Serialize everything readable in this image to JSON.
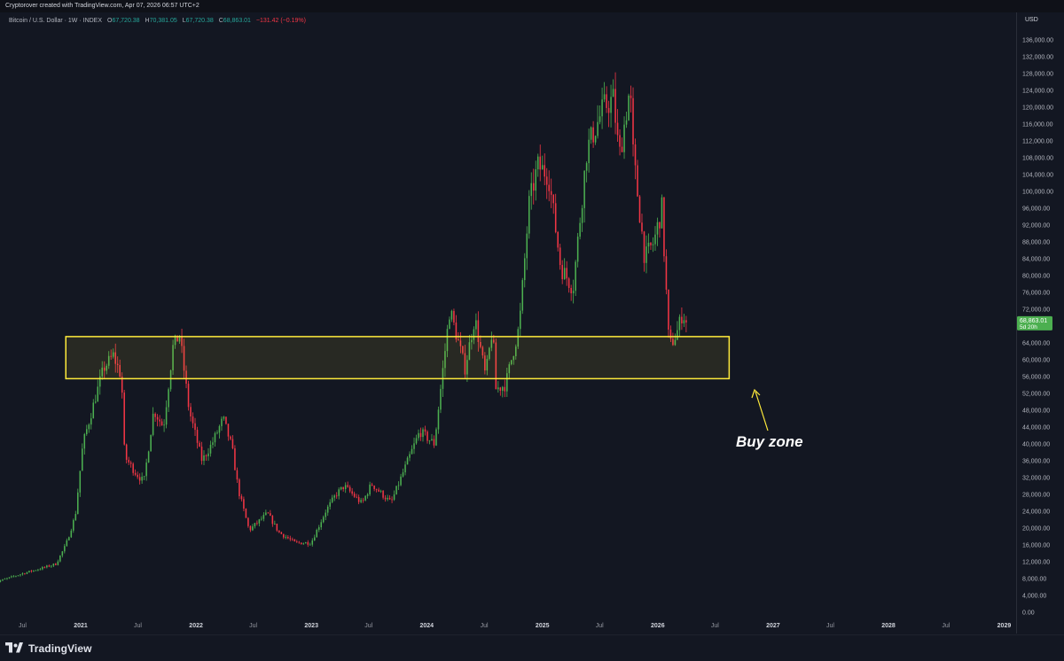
{
  "header": {
    "credit": "Cryptorover created with TradingView.com, Apr 07, 2026 06:57 UTC+2"
  },
  "legend": {
    "symbol": "Bitcoin / U.S. Dollar · 1W · INDEX",
    "open_label": "O",
    "open": "67,720.38",
    "high_label": "H",
    "high": "70,381.05",
    "low_label": "L",
    "low": "67,720.38",
    "close_label": "C",
    "close": "68,863.01",
    "change": "−131.42 (−0.19%)"
  },
  "price_axis": {
    "currency": "USD",
    "current_price": "68,863.01",
    "countdown": "5d 20h"
  },
  "annotation": {
    "label": "Buy zone"
  },
  "branding": {
    "logo_text": "TradingView"
  },
  "colors": {
    "background": "#131722",
    "up": "#26a69a",
    "up_bright": "#4caf50",
    "down": "#f23645",
    "zone_border": "#ffeb3b",
    "price_tag": "#4caf50"
  },
  "chart_data": {
    "type": "candlestick",
    "interval": "1W",
    "grid": false,
    "ylim": [
      0,
      138000
    ],
    "y_ticks": [
      "136,000.00",
      "132,000.00",
      "128,000.00",
      "124,000.00",
      "120,000.00",
      "116,000.00",
      "112,000.00",
      "108,000.00",
      "104,000.00",
      "100,000.00",
      "96,000.00",
      "92,000.00",
      "88,000.00",
      "84,000.00",
      "80,000.00",
      "76,000.00",
      "72,000.00",
      "68,000.00",
      "64,000.00",
      "60,000.00",
      "56,000.00",
      "52,000.00",
      "48,000.00",
      "44,000.00",
      "40,000.00",
      "36,000.00",
      "32,000.00",
      "28,000.00",
      "24,000.00",
      "20,000.00",
      "16,000.00",
      "12,000.00",
      "8,000.00",
      "4,000.00",
      "0.00"
    ],
    "x_ticks": [
      {
        "label": "Jul",
        "date": "2020-07-01"
      },
      {
        "label": "2021",
        "date": "2021-01-01"
      },
      {
        "label": "Jul",
        "date": "2021-07-01"
      },
      {
        "label": "2022",
        "date": "2022-01-01"
      },
      {
        "label": "Jul",
        "date": "2022-07-01"
      },
      {
        "label": "2023",
        "date": "2023-01-01"
      },
      {
        "label": "Jul",
        "date": "2023-07-01"
      },
      {
        "label": "2024",
        "date": "2024-01-01"
      },
      {
        "label": "Jul",
        "date": "2024-07-01"
      },
      {
        "label": "2025",
        "date": "2025-01-01"
      },
      {
        "label": "Jul",
        "date": "2025-07-01"
      },
      {
        "label": "2026",
        "date": "2026-01-01"
      },
      {
        "label": "Jul",
        "date": "2026-07-01"
      },
      {
        "label": "2027",
        "date": "2027-01-01"
      },
      {
        "label": "Jul",
        "date": "2027-07-01"
      },
      {
        "label": "2028",
        "date": "2028-01-01"
      },
      {
        "label": "Jul",
        "date": "2028-07-01"
      },
      {
        "label": "2029",
        "date": "2029-01-01"
      }
    ],
    "price_path": [
      [
        "2020-04-01",
        7000
      ],
      [
        "2020-07-01",
        9200
      ],
      [
        "2020-09-01",
        10500
      ],
      [
        "2020-10-15",
        11500
      ],
      [
        "2020-11-15",
        16000
      ],
      [
        "2020-12-15",
        23000
      ],
      [
        "2021-01-08",
        40000
      ],
      [
        "2021-02-20",
        52000
      ],
      [
        "2021-03-15",
        58000
      ],
      [
        "2021-04-14",
        61000
      ],
      [
        "2021-05-10",
        56000
      ],
      [
        "2021-05-20",
        37000
      ],
      [
        "2021-06-25",
        33000
      ],
      [
        "2021-07-20",
        31000
      ],
      [
        "2021-08-20",
        48000
      ],
      [
        "2021-09-20",
        44000
      ],
      [
        "2021-10-20",
        63000
      ],
      [
        "2021-11-10",
        66000
      ],
      [
        "2021-12-10",
        48000
      ],
      [
        "2022-01-20",
        36000
      ],
      [
        "2022-02-20",
        40000
      ],
      [
        "2022-03-28",
        46000
      ],
      [
        "2022-04-25",
        39000
      ],
      [
        "2022-05-15",
        29000
      ],
      [
        "2022-06-18",
        19500
      ],
      [
        "2022-08-15",
        23500
      ],
      [
        "2022-09-20",
        19000
      ],
      [
        "2022-11-10",
        16500
      ],
      [
        "2022-12-31",
        16500
      ],
      [
        "2023-02-15",
        24000
      ],
      [
        "2023-03-20",
        28000
      ],
      [
        "2023-04-15",
        30000
      ],
      [
        "2023-06-10",
        25800
      ],
      [
        "2023-07-10",
        30500
      ],
      [
        "2023-09-10",
        26000
      ],
      [
        "2023-10-25",
        34500
      ],
      [
        "2023-12-10",
        43000
      ],
      [
        "2024-01-25",
        40000
      ],
      [
        "2024-03-14",
        72000
      ],
      [
        "2024-05-01",
        58000
      ],
      [
        "2024-06-01",
        70000
      ],
      [
        "2024-07-05",
        56000
      ],
      [
        "2024-07-28",
        68000
      ],
      [
        "2024-08-05",
        53000
      ],
      [
        "2024-09-06",
        54000
      ],
      [
        "2024-10-20",
        68000
      ],
      [
        "2024-11-20",
        97000
      ],
      [
        "2024-12-17",
        106000
      ],
      [
        "2025-01-20",
        104000
      ],
      [
        "2025-02-28",
        82000
      ],
      [
        "2025-04-08",
        77000
      ],
      [
        "2025-05-22",
        110000
      ],
      [
        "2025-07-14",
        120000
      ],
      [
        "2025-08-14",
        122000
      ],
      [
        "2025-09-01",
        108000
      ],
      [
        "2025-10-06",
        125000
      ],
      [
        "2025-10-12",
        111000
      ],
      [
        "2025-11-21",
        84000
      ],
      [
        "2025-12-20",
        88000
      ],
      [
        "2026-01-14",
        96000
      ],
      [
        "2026-02-06",
        63000
      ],
      [
        "2026-03-01",
        66000
      ],
      [
        "2026-03-20",
        71000
      ],
      [
        "2026-04-06",
        68863
      ]
    ],
    "buy_zone": {
      "from_date": "2020-11-15",
      "to_date": "2026-08-15",
      "low": 55500,
      "high": 65500
    }
  }
}
